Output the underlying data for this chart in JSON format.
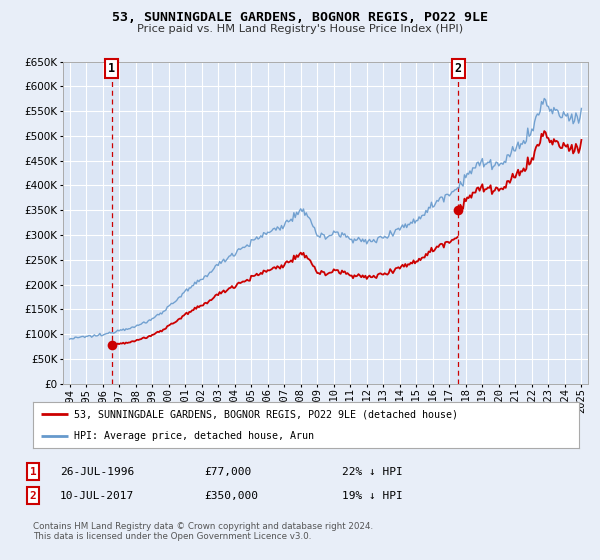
{
  "title": "53, SUNNINGDALE GARDENS, BOGNOR REGIS, PO22 9LE",
  "subtitle": "Price paid vs. HM Land Registry's House Price Index (HPI)",
  "bg_color": "#e8eef8",
  "plot_bg_color": "#dce6f5",
  "grid_color": "#ffffff",
  "ylim": [
    0,
    650000
  ],
  "yticks": [
    0,
    50000,
    100000,
    150000,
    200000,
    250000,
    300000,
    350000,
    400000,
    450000,
    500000,
    550000,
    600000,
    650000
  ],
  "xlim_start": 1993.6,
  "xlim_end": 2025.4,
  "xticks": [
    1994,
    1995,
    1996,
    1997,
    1998,
    1999,
    2000,
    2001,
    2002,
    2003,
    2004,
    2005,
    2006,
    2007,
    2008,
    2009,
    2010,
    2011,
    2012,
    2013,
    2014,
    2015,
    2016,
    2017,
    2018,
    2019,
    2020,
    2021,
    2022,
    2023,
    2024,
    2025
  ],
  "transaction1_x": 1996.56,
  "transaction1_y": 77000,
  "transaction1_label": "1",
  "transaction1_date": "26-JUL-1996",
  "transaction1_price": "£77,000",
  "transaction1_hpi": "22% ↓ HPI",
  "transaction2_x": 2017.53,
  "transaction2_y": 350000,
  "transaction2_label": "2",
  "transaction2_date": "10-JUL-2017",
  "transaction2_price": "£350,000",
  "transaction2_hpi": "19% ↓ HPI",
  "legend_label1": "53, SUNNINGDALE GARDENS, BOGNOR REGIS, PO22 9LE (detached house)",
  "legend_label2": "HPI: Average price, detached house, Arun",
  "footer1": "Contains HM Land Registry data © Crown copyright and database right 2024.",
  "footer2": "This data is licensed under the Open Government Licence v3.0.",
  "hpi_color": "#6699cc",
  "price_color": "#cc0000",
  "dot_color": "#cc0000",
  "vline_color": "#cc0000",
  "annotation_box_color": "#cc0000"
}
